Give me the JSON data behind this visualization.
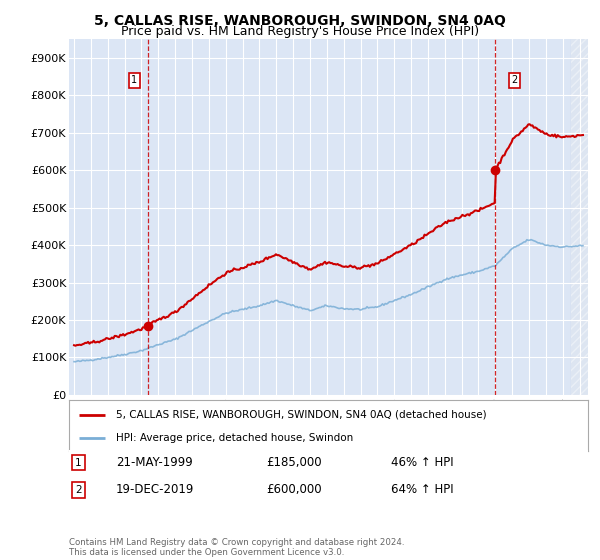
{
  "title": "5, CALLAS RISE, WANBOROUGH, SWINDON, SN4 0AQ",
  "subtitle": "Price paid vs. HM Land Registry's House Price Index (HPI)",
  "ylim": [
    0,
    950000
  ],
  "yticks": [
    0,
    100000,
    200000,
    300000,
    400000,
    500000,
    600000,
    700000,
    800000,
    900000
  ],
  "ytick_labels": [
    "£0",
    "£100K",
    "£200K",
    "£300K",
    "£400K",
    "£500K",
    "£600K",
    "£700K",
    "£800K",
    "£900K"
  ],
  "xlim_start": 1994.7,
  "xlim_end": 2025.5,
  "background_color": "#dce6f5",
  "grid_color": "#ffffff",
  "sale1_date": 1999.38,
  "sale1_price": 185000,
  "sale2_date": 2019.96,
  "sale2_price": 600000,
  "legend_label_red": "5, CALLAS RISE, WANBOROUGH, SWINDON, SN4 0AQ (detached house)",
  "legend_label_blue": "HPI: Average price, detached house, Swindon",
  "annotation1_date": "21-MAY-1999",
  "annotation1_price": "£185,000",
  "annotation1_hpi": "46% ↑ HPI",
  "annotation2_date": "19-DEC-2019",
  "annotation2_price": "£600,000",
  "annotation2_hpi": "64% ↑ HPI",
  "footer": "Contains HM Land Registry data © Crown copyright and database right 2024.\nThis data is licensed under the Open Government Licence v3.0.",
  "red_color": "#cc0000",
  "blue_color": "#7aaed6",
  "title_fontsize": 10,
  "subtitle_fontsize": 9
}
